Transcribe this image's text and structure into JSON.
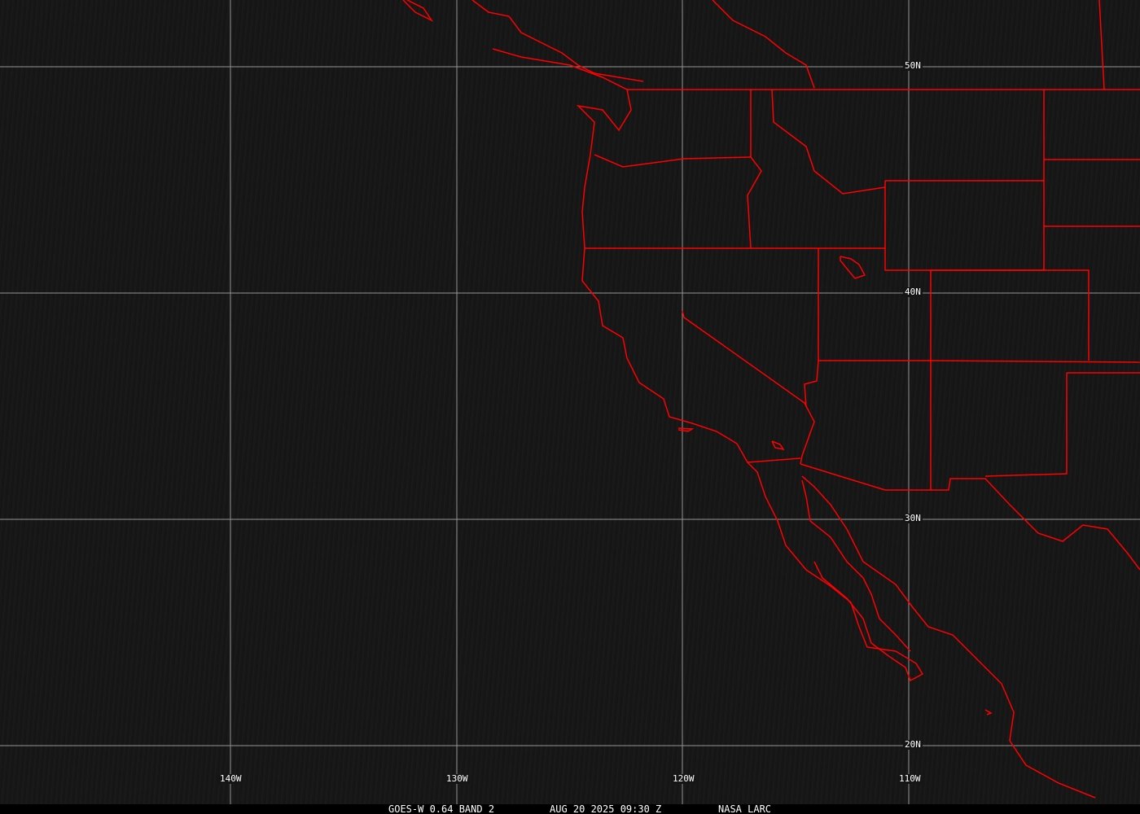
{
  "map": {
    "latitude_labels": [
      "50N",
      "40N",
      "30N",
      "20N"
    ],
    "longitude_labels": [
      "140W",
      "130W",
      "120W",
      "110W"
    ],
    "boundary_color": "#ff0000",
    "grid_color": "#b4b4b4"
  },
  "footer": {
    "product": "GOES-W 0.64 BAND 2",
    "datetime": "AUG 20 2025 09:30 Z",
    "source": "NASA LARC"
  }
}
